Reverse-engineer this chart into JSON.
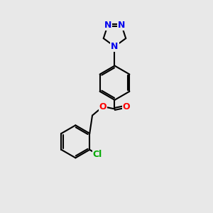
{
  "bg_color": "#e8e8e8",
  "bond_color": "#000000",
  "bond_width": 1.5,
  "atom_colors": {
    "N": "#0000ee",
    "O": "#ff0000",
    "Cl": "#00aa00",
    "C": "#000000"
  },
  "font_size_atom": 9
}
